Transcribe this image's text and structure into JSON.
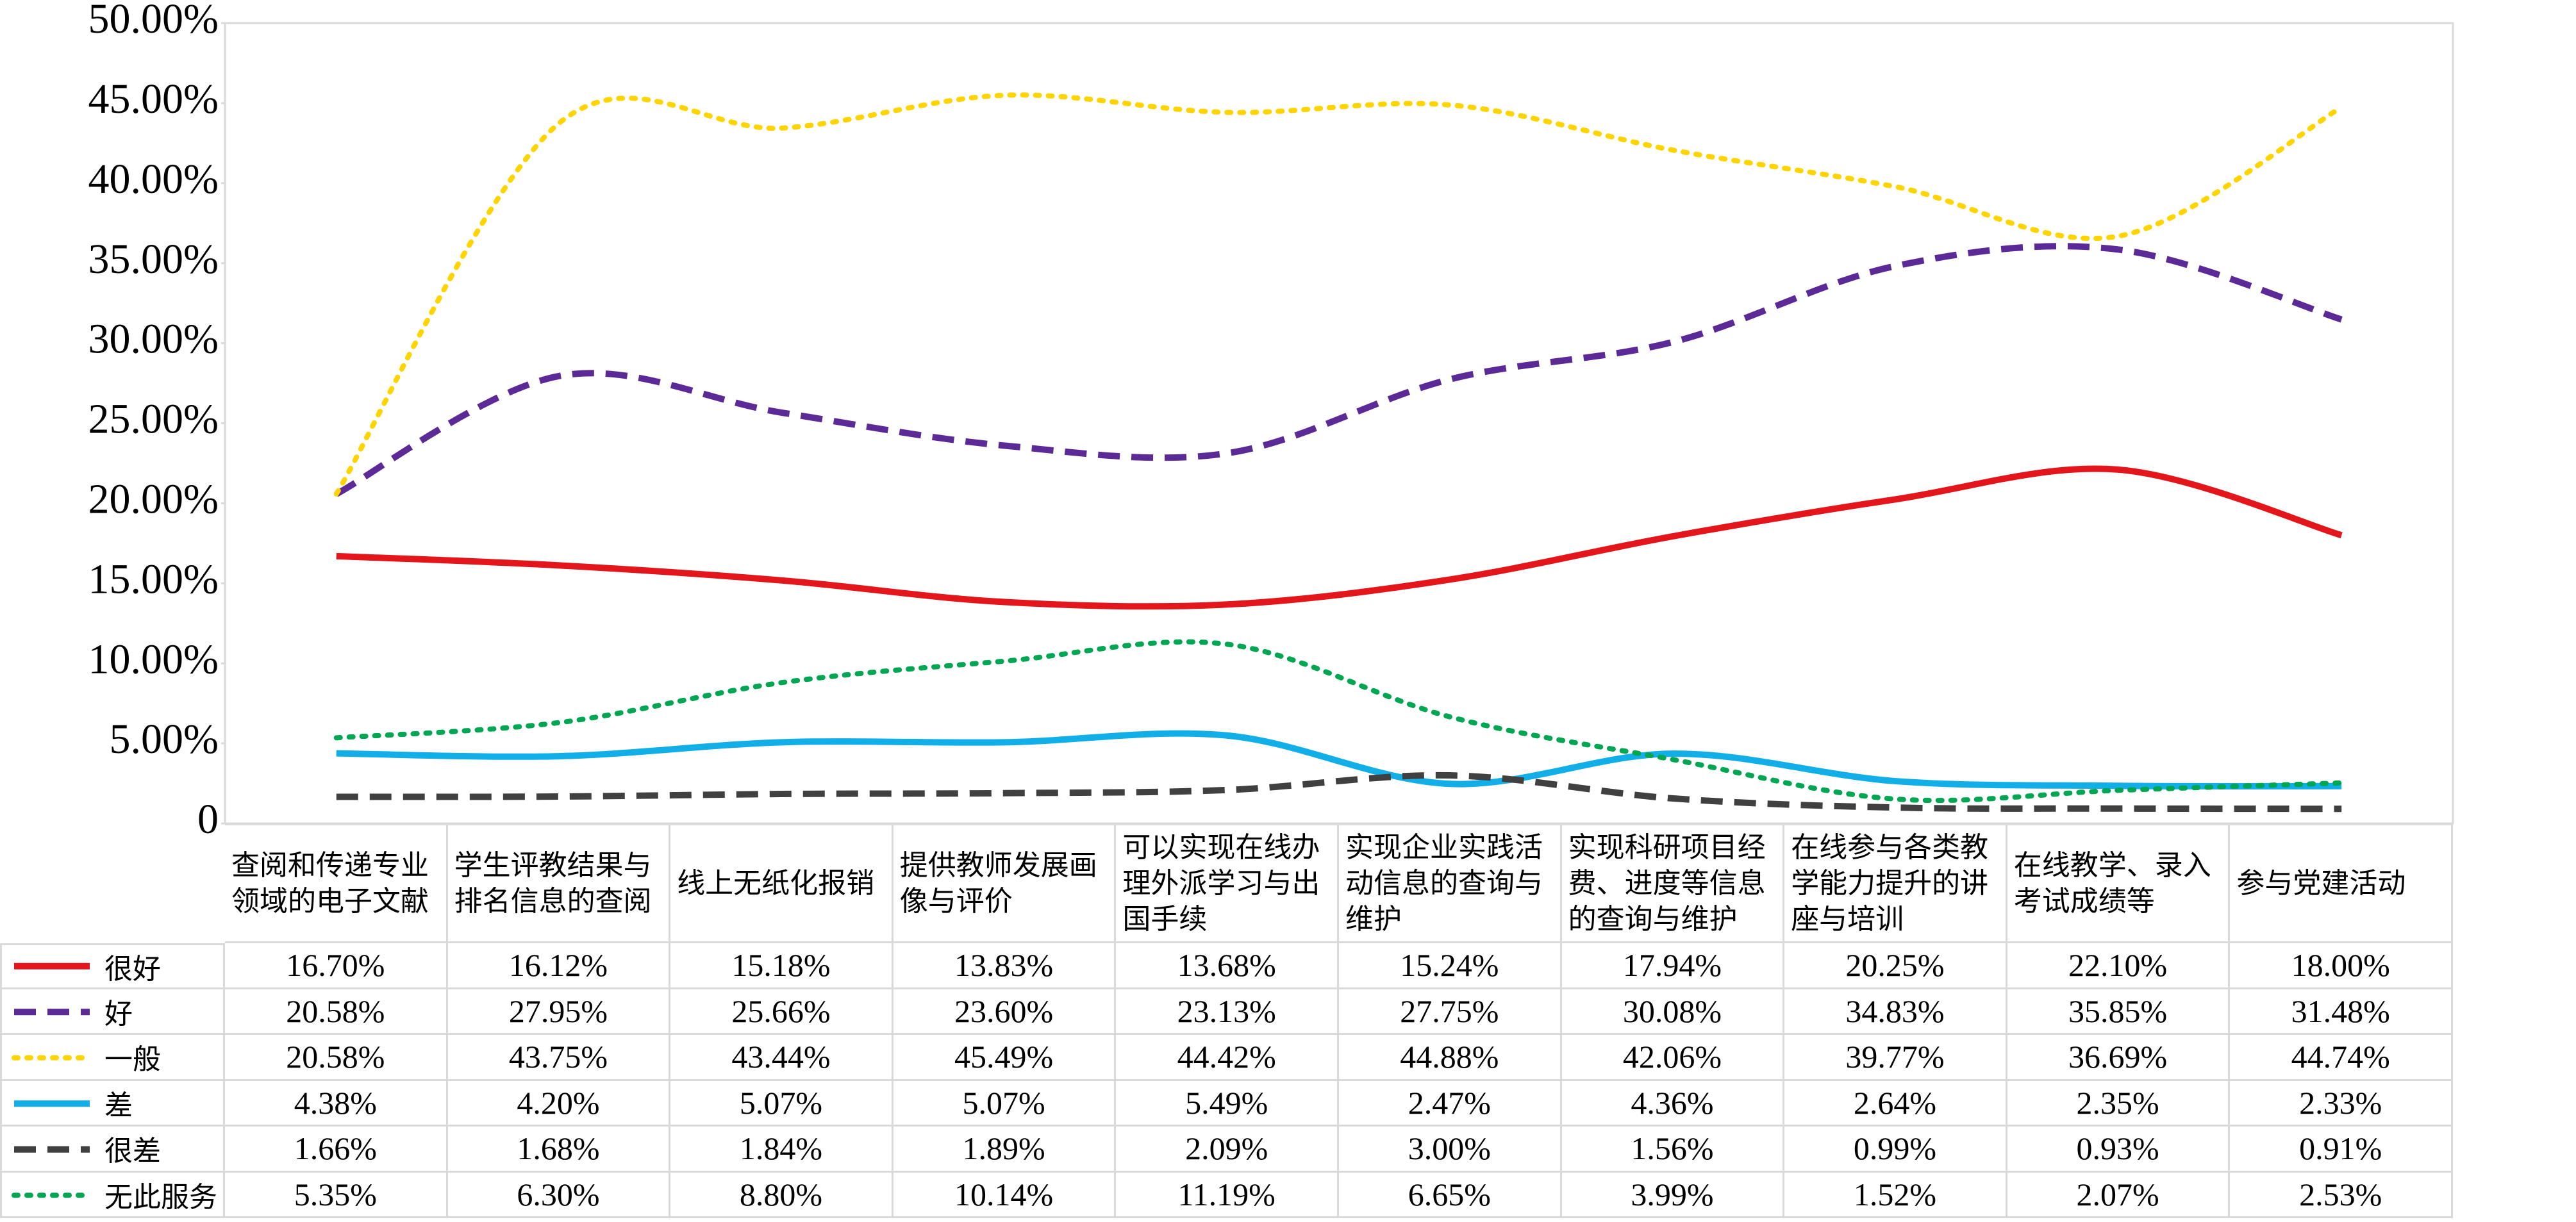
{
  "chart_data": {
    "type": "line",
    "categories": [
      "查阅和传递专业领域的电子文献",
      "学生评教结果与排名信息的查阅",
      "线上无纸化报销",
      "提供教师发展画像与评价",
      "可以实现在线办理外派学习与出国手续",
      "实现企业实践活动信息的查询与维护",
      "实现科研项目经费、进度等信息的查询与维护",
      "在线参与各类教学能力提升的讲座与培训",
      "在线教学、录入考试成绩等",
      "参与党建活动"
    ],
    "ylim": [
      0,
      50
    ],
    "yticks": [
      0,
      {
        "value": 5,
        "label": "5.00%"
      },
      {
        "value": 10,
        "label": "10.00%"
      },
      {
        "value": 15,
        "label": "15.00%"
      },
      {
        "value": 20,
        "label": "20.00%"
      },
      {
        "value": 25,
        "label": "25.00%"
      },
      {
        "value": 30,
        "label": "30.00%"
      },
      {
        "value": 35,
        "label": "35.00%"
      },
      {
        "value": 40,
        "label": "40.00%"
      },
      {
        "value": 45,
        "label": "45.00%"
      },
      {
        "value": 50,
        "label": "50.00%"
      }
    ],
    "series": [
      {
        "name": "很好",
        "color": "#e3161c",
        "dash": "solid",
        "values": [
          16.7,
          16.12,
          15.18,
          13.83,
          13.68,
          15.24,
          17.94,
          20.25,
          22.1,
          18.0
        ],
        "value_labels": [
          "16.70%",
          "16.12%",
          "15.18%",
          "13.83%",
          "13.68%",
          "15.24%",
          "17.94%",
          "20.25%",
          "22.10%",
          "18.00%"
        ]
      },
      {
        "name": "好",
        "color": "#5b2a96",
        "dash": "dashed",
        "values": [
          20.58,
          27.95,
          25.66,
          23.6,
          23.13,
          27.75,
          30.08,
          34.83,
          35.85,
          31.48
        ],
        "value_labels": [
          "20.58%",
          "27.95%",
          "25.66%",
          "23.60%",
          "23.13%",
          "27.75%",
          "30.08%",
          "34.83%",
          "35.85%",
          "31.48%"
        ]
      },
      {
        "name": "一般",
        "color": "#ffd400",
        "dash": "dotted",
        "values": [
          20.58,
          43.75,
          43.44,
          45.49,
          44.42,
          44.88,
          42.06,
          39.77,
          36.69,
          44.74
        ],
        "value_labels": [
          "20.58%",
          "43.75%",
          "43.44%",
          "45.49%",
          "44.42%",
          "44.88%",
          "42.06%",
          "39.77%",
          "36.69%",
          "44.74%"
        ]
      },
      {
        "name": "差",
        "color": "#12aee8",
        "dash": "solid",
        "values": [
          4.38,
          4.2,
          5.07,
          5.07,
          5.49,
          2.47,
          4.36,
          2.64,
          2.35,
          2.33
        ],
        "value_labels": [
          "4.38%",
          "4.20%",
          "5.07%",
          "5.07%",
          "5.49%",
          "2.47%",
          "4.36%",
          "2.64%",
          "2.35%",
          "2.33%"
        ]
      },
      {
        "name": "很差",
        "color": "#404040",
        "dash": "dashed",
        "values": [
          1.66,
          1.68,
          1.84,
          1.89,
          2.09,
          3.0,
          1.56,
          0.99,
          0.93,
          0.91
        ],
        "value_labels": [
          "1.66%",
          "1.68%",
          "1.84%",
          "1.89%",
          "2.09%",
          "3.00%",
          "1.56%",
          "0.99%",
          "0.93%",
          "0.91%"
        ]
      },
      {
        "name": "无此服务",
        "color": "#00a651",
        "dash": "dotted",
        "values": [
          5.35,
          6.3,
          8.8,
          10.14,
          11.19,
          6.65,
          3.99,
          1.52,
          2.07,
          2.53
        ],
        "value_labels": [
          "5.35%",
          "6.30%",
          "8.80%",
          "10.14%",
          "11.19%",
          "6.65%",
          "3.99%",
          "1.52%",
          "2.07%",
          "2.53%"
        ]
      }
    ]
  }
}
